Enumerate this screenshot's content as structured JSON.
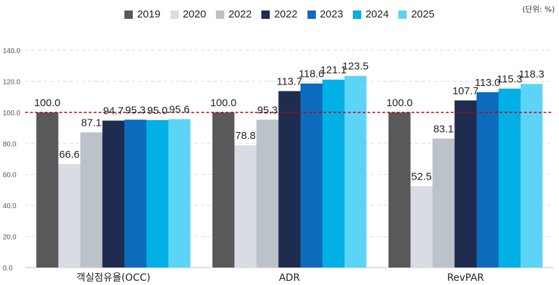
{
  "unit_note": "(단위: %)",
  "chart_data": {
    "type": "bar",
    "categories": [
      "객실점유율(OCC)",
      "ADR",
      "RevPAR"
    ],
    "series": [
      {
        "name": "2019",
        "color": "#595959",
        "values": [
          100.0,
          100.0,
          100.0
        ]
      },
      {
        "name": "2020",
        "color": "#d9dde3",
        "values": [
          66.6,
          78.8,
          52.5
        ]
      },
      {
        "name": "2022",
        "color": "#bcc2ca",
        "values": [
          87.1,
          95.3,
          83.1
        ]
      },
      {
        "name": "2022",
        "color": "#1e2d4f",
        "values": [
          94.7,
          113.7,
          107.7
        ]
      },
      {
        "name": "2023",
        "color": "#0d6bbd",
        "values": [
          95.3,
          118.6,
          113.0
        ]
      },
      {
        "name": "2024",
        "color": "#00b0e6",
        "values": [
          95.0,
          121.1,
          115.3
        ]
      },
      {
        "name": "2025",
        "color": "#5dd3f7",
        "values": [
          95.6,
          123.5,
          118.3
        ]
      }
    ],
    "y_ticks": [
      "0.0",
      "20.0",
      "40.0",
      "60.0",
      "80.0",
      "100.0",
      "120.0",
      "140.0"
    ],
    "ylim": [
      0,
      140
    ],
    "reference_line": {
      "value": 100,
      "color": "#cc0000",
      "style": "dashed"
    },
    "grid": true,
    "legend_position": "top-center"
  }
}
